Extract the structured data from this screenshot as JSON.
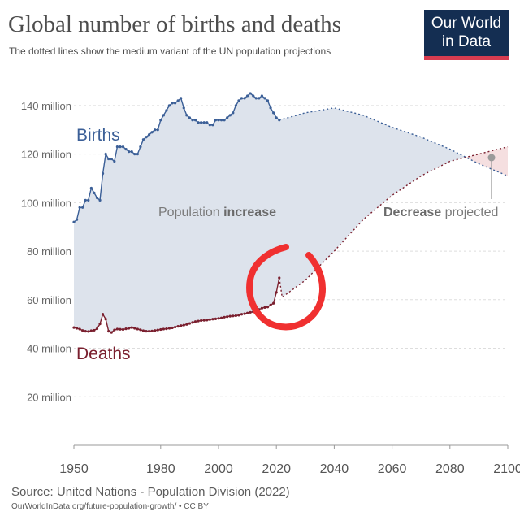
{
  "title": "Global number of births and deaths",
  "subtitle": "The dotted lines show the medium variant of the UN population projections",
  "logo": {
    "line1": "Our World",
    "line2": "in Data"
  },
  "source": "Source: United Nations - Population Division (2022)",
  "footer": "OurWorldInData.org/future-population-growth/ • CC BY",
  "colors": {
    "births": "#3b5f97",
    "deaths": "#7a1f2e",
    "increase_fill": "#dde3ec",
    "decrease_fill": "#f5dfe0",
    "grid": "#dddddd",
    "annotation_circle": "#f03030"
  },
  "annotations": {
    "births_label": "Births",
    "deaths_label": "Deaths",
    "increase_label_prefix": "Population ",
    "increase_label_bold": "increase",
    "decrease_label_bold": "Decrease",
    "decrease_label_suffix": " projected",
    "hand_drawn_circle": "red circle around 2021 deaths peak"
  },
  "chart_data": {
    "type": "line",
    "title": "Global number of births and deaths",
    "subtitle": "The dotted lines show the medium variant of the UN population projections",
    "xlabel": "",
    "ylabel": "",
    "x_ticks": [
      1950,
      1980,
      2000,
      2020,
      2040,
      2060,
      2080,
      2100
    ],
    "y_ticks": [
      {
        "value": 20,
        "label": "20 million"
      },
      {
        "value": 40,
        "label": "40 million"
      },
      {
        "value": 60,
        "label": "60 million"
      },
      {
        "value": 80,
        "label": "80 million"
      },
      {
        "value": 100,
        "label": "100 million"
      },
      {
        "value": 120,
        "label": "120 million"
      },
      {
        "value": 140,
        "label": "140 million"
      }
    ],
    "xlim": [
      1950,
      2100
    ],
    "ylim": [
      0,
      150
    ],
    "grid": true,
    "series": [
      {
        "name": "Births",
        "style": "solid",
        "x": [
          1950,
          1951,
          1952,
          1953,
          1954,
          1955,
          1956,
          1957,
          1958,
          1959,
          1960,
          1961,
          1962,
          1963,
          1964,
          1965,
          1966,
          1967,
          1968,
          1969,
          1970,
          1971,
          1972,
          1973,
          1974,
          1975,
          1976,
          1977,
          1978,
          1979,
          1980,
          1981,
          1982,
          1983,
          1984,
          1985,
          1986,
          1987,
          1988,
          1989,
          1990,
          1991,
          1992,
          1993,
          1994,
          1995,
          1996,
          1997,
          1998,
          1999,
          2000,
          2001,
          2002,
          2003,
          2004,
          2005,
          2006,
          2007,
          2008,
          2009,
          2010,
          2011,
          2012,
          2013,
          2014,
          2015,
          2016,
          2017,
          2018,
          2019,
          2020,
          2021
        ],
        "y": [
          92,
          93,
          98,
          98,
          101,
          101,
          106,
          104,
          102,
          101,
          112,
          120,
          118,
          118,
          117,
          123,
          123,
          123,
          122,
          121,
          121,
          120,
          120,
          123,
          126,
          127,
          128,
          129,
          130,
          130,
          134,
          136,
          138,
          140,
          141,
          141,
          142,
          143,
          139,
          136,
          135,
          134,
          134,
          133,
          133,
          133,
          133,
          132,
          132,
          134,
          134,
          134,
          134,
          135,
          136,
          137,
          140,
          142,
          143,
          143,
          144,
          145,
          144,
          143,
          143,
          144,
          143,
          142,
          139,
          137,
          135,
          134
        ]
      },
      {
        "name": "Births projected",
        "style": "dotted",
        "x": [
          2021,
          2030,
          2040,
          2050,
          2060,
          2070,
          2080,
          2090,
          2100
        ],
        "y": [
          134,
          137,
          139,
          136,
          131,
          127,
          122,
          116,
          111
        ]
      },
      {
        "name": "Deaths",
        "style": "solid",
        "x": [
          1950,
          1951,
          1952,
          1953,
          1954,
          1955,
          1956,
          1957,
          1958,
          1959,
          1960,
          1961,
          1962,
          1963,
          1964,
          1965,
          1966,
          1967,
          1968,
          1969,
          1970,
          1971,
          1972,
          1973,
          1974,
          1975,
          1976,
          1977,
          1978,
          1979,
          1980,
          1981,
          1982,
          1983,
          1984,
          1985,
          1986,
          1987,
          1988,
          1989,
          1990,
          1991,
          1992,
          1993,
          1994,
          1995,
          1996,
          1997,
          1998,
          1999,
          2000,
          2001,
          2002,
          2003,
          2004,
          2005,
          2006,
          2007,
          2008,
          2009,
          2010,
          2011,
          2012,
          2013,
          2014,
          2015,
          2016,
          2017,
          2018,
          2019,
          2020,
          2021
        ],
        "y": [
          48.5,
          48.2,
          47.9,
          47.3,
          47.0,
          46.9,
          47.2,
          47.4,
          48.0,
          50.0,
          54.0,
          52.0,
          47.0,
          46.5,
          47.5,
          47.9,
          47.8,
          47.7,
          48.0,
          48.2,
          48.5,
          48.2,
          47.9,
          47.6,
          47.2,
          47.0,
          47.0,
          47.1,
          47.3,
          47.5,
          47.7,
          47.9,
          48.0,
          48.2,
          48.4,
          48.7,
          49.0,
          49.3,
          49.5,
          49.8,
          50.2,
          50.6,
          51.0,
          51.2,
          51.4,
          51.5,
          51.6,
          51.8,
          52.0,
          52.1,
          52.3,
          52.5,
          52.8,
          53.0,
          53.2,
          53.3,
          53.4,
          53.6,
          54.0,
          54.2,
          54.5,
          54.8,
          55.0,
          55.5,
          56.0,
          56.5,
          56.8,
          57.0,
          57.8,
          58.5,
          63.0,
          69.0
        ]
      },
      {
        "name": "Deaths projected",
        "style": "dotted",
        "x": [
          2021,
          2022,
          2030,
          2040,
          2050,
          2060,
          2070,
          2080,
          2090,
          2100
        ],
        "y": [
          69,
          61,
          68,
          80,
          93,
          103,
          111,
          117,
          120,
          123
        ]
      }
    ]
  }
}
